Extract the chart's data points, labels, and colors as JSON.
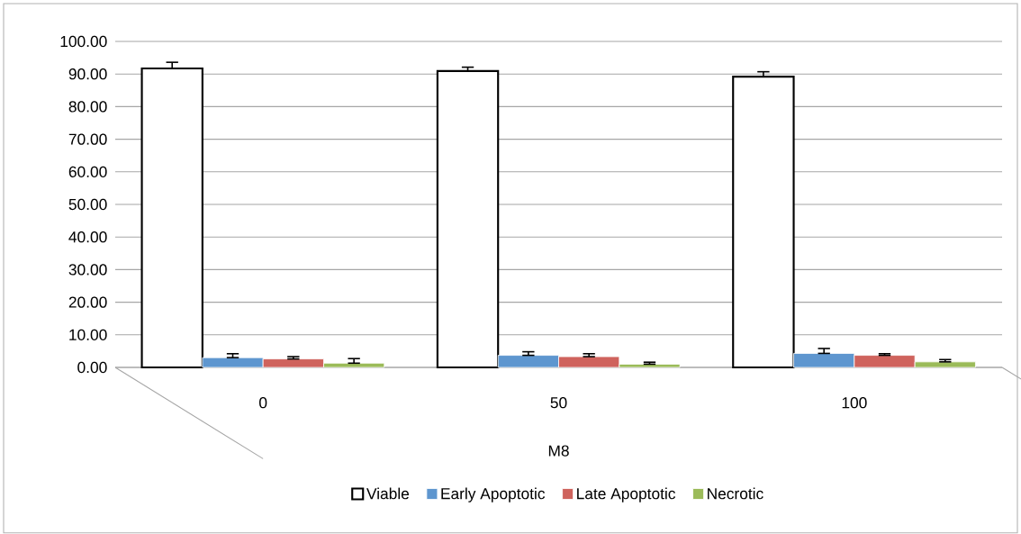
{
  "chart_data": {
    "type": "bar",
    "xlabel": "M8",
    "categories": [
      "0",
      "50",
      "100"
    ],
    "series": [
      {
        "name": "Viable",
        "color": "#ffffff",
        "values": [
          91.7,
          90.9,
          89.2
        ],
        "errors": [
          [
            91.7,
            93.6
          ],
          [
            90.9,
            92.1
          ],
          [
            89.2,
            90.7
          ]
        ]
      },
      {
        "name": "Early Apoptotic",
        "color": "#5e96cf",
        "values": [
          3.0,
          3.7,
          4.3
        ],
        "errors": [
          [
            3.0,
            4.2
          ],
          [
            3.7,
            4.8
          ],
          [
            4.3,
            5.8
          ]
        ]
      },
      {
        "name": "Late Apoptotic",
        "color": "#cf635d",
        "values": [
          2.6,
          3.3,
          3.7
        ],
        "errors": [
          [
            2.6,
            3.3
          ],
          [
            3.3,
            4.2
          ],
          [
            3.7,
            4.2
          ]
        ]
      },
      {
        "name": "Necrotic",
        "color": "#9bbb59",
        "values": [
          1.3,
          1.0,
          1.7
        ],
        "errors": [
          [
            1.3,
            2.7
          ],
          [
            1.0,
            1.6
          ],
          [
            1.7,
            2.4
          ]
        ]
      }
    ],
    "ylim": [
      0,
      100
    ],
    "yticks": [
      {
        "value": 0,
        "label": "0.00"
      },
      {
        "value": 10,
        "label": "10.00"
      },
      {
        "value": 20,
        "label": "20.00"
      },
      {
        "value": 30,
        "label": "30.00"
      },
      {
        "value": 40,
        "label": "40.00"
      },
      {
        "value": 50,
        "label": "50.00"
      },
      {
        "value": 60,
        "label": "60.00"
      },
      {
        "value": 70,
        "label": "70.00"
      },
      {
        "value": 80,
        "label": "80.00"
      },
      {
        "value": 90,
        "label": "90.00"
      },
      {
        "value": 100,
        "label": "100.00"
      }
    ],
    "grid": "y",
    "legend": "bottom"
  }
}
